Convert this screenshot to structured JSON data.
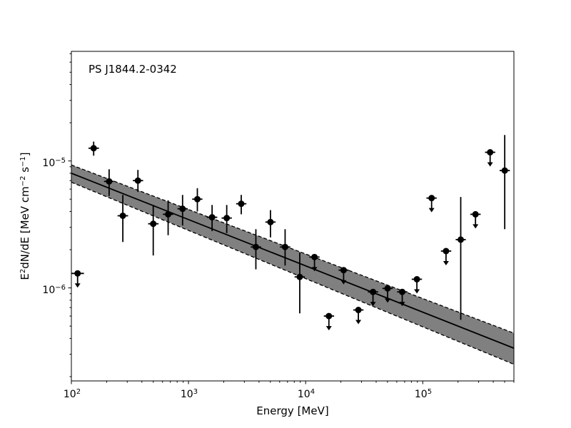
{
  "chart_data": {
    "type": "scatter",
    "title": "PS J1844.2-0342",
    "xlabel": "Energy [MeV]",
    "ylabel_main": "E",
    "ylabel_sup1": "2",
    "ylabel_mid": "dN/dE [MeV cm",
    "ylabel_sup2": "−2",
    "ylabel_mid2": " s",
    "ylabel_sup3": "−1",
    "ylabel_end": "]",
    "xscale": "log",
    "yscale": "log",
    "xlim": [
      100,
      600000
    ],
    "ylim": [
      1.85e-07,
      7.3e-05
    ],
    "x_ticks": [
      {
        "value": 100,
        "base": "10",
        "exp": "2"
      },
      {
        "value": 1000,
        "base": "10",
        "exp": "3"
      },
      {
        "value": 10000,
        "base": "10",
        "exp": "4"
      },
      {
        "value": 100000,
        "base": "10",
        "exp": "5"
      }
    ],
    "y_ticks": [
      {
        "value": 1e-06,
        "base": "10",
        "exp": "−6"
      },
      {
        "value": 1e-05,
        "base": "10",
        "exp": "−5"
      }
    ],
    "model": {
      "type": "power-law",
      "x_range": [
        100,
        600000
      ],
      "best": [
        8e-06,
        3.35e-07
      ],
      "upper": [
        9.3e-06,
        4.4e-07
      ],
      "lower": [
        6.8e-06,
        2.5e-07
      ],
      "band_color": "#808080",
      "line_color": "#000000"
    },
    "points": [
      {
        "x": 113,
        "y": 1.3e-06,
        "xlo": 100,
        "xhi": 128,
        "upper_limit": true
      },
      {
        "x": 155,
        "y": 1.26e-05,
        "xlo": 140,
        "xhi": 172,
        "ylo": 1.1e-05,
        "yhi": 1.42e-05,
        "upper_limit": false
      },
      {
        "x": 210,
        "y": 6.9e-06,
        "xlo": 190,
        "xhi": 230,
        "ylo": 5.3e-06,
        "yhi": 8.6e-06,
        "upper_limit": false
      },
      {
        "x": 275,
        "y": 3.7e-06,
        "xlo": 248,
        "xhi": 305,
        "ylo": 2.3e-06,
        "yhi": 5.4e-06,
        "upper_limit": false
      },
      {
        "x": 370,
        "y": 7e-06,
        "xlo": 335,
        "xhi": 410,
        "ylo": 5.7e-06,
        "yhi": 8.5e-06,
        "upper_limit": false
      },
      {
        "x": 500,
        "y": 3.2e-06,
        "xlo": 452,
        "xhi": 555,
        "ylo": 1.8e-06,
        "yhi": 4.5e-06,
        "upper_limit": false
      },
      {
        "x": 670,
        "y": 3.8e-06,
        "xlo": 605,
        "xhi": 740,
        "ylo": 2.6e-06,
        "yhi": 4.9e-06,
        "upper_limit": false
      },
      {
        "x": 890,
        "y": 4.2e-06,
        "xlo": 805,
        "xhi": 985,
        "ylo": 3.1e-06,
        "yhi": 5.4e-06,
        "upper_limit": false
      },
      {
        "x": 1190,
        "y": 5e-06,
        "xlo": 1075,
        "xhi": 1315,
        "ylo": 4e-06,
        "yhi": 6.1e-06,
        "upper_limit": false
      },
      {
        "x": 1590,
        "y": 3.6e-06,
        "xlo": 1435,
        "xhi": 1760,
        "ylo": 2.8e-06,
        "yhi": 4.5e-06,
        "upper_limit": false
      },
      {
        "x": 2120,
        "y": 3.55e-06,
        "xlo": 1915,
        "xhi": 2345,
        "ylo": 2.7e-06,
        "yhi": 4.5e-06,
        "upper_limit": false
      },
      {
        "x": 2820,
        "y": 4.6e-06,
        "xlo": 2550,
        "xhi": 3120,
        "ylo": 3.8e-06,
        "yhi": 5.4e-06,
        "upper_limit": false
      },
      {
        "x": 3760,
        "y": 2.1e-06,
        "xlo": 3400,
        "xhi": 4160,
        "ylo": 1.4e-06,
        "yhi": 2.9e-06,
        "upper_limit": false
      },
      {
        "x": 5010,
        "y": 3.3e-06,
        "xlo": 4530,
        "xhi": 5540,
        "ylo": 2.5e-06,
        "yhi": 4.1e-06,
        "upper_limit": false
      },
      {
        "x": 6680,
        "y": 2.1e-06,
        "xlo": 6040,
        "xhi": 7390,
        "ylo": 1.5e-06,
        "yhi": 2.9e-06,
        "upper_limit": false
      },
      {
        "x": 8910,
        "y": 1.22e-06,
        "xlo": 8050,
        "xhi": 9850,
        "ylo": 6.3e-07,
        "yhi": 1.9e-06,
        "upper_limit": false
      },
      {
        "x": 11900,
        "y": 1.75e-06,
        "xlo": 10750,
        "xhi": 13150,
        "upper_limit": true
      },
      {
        "x": 15800,
        "y": 6e-07,
        "xlo": 14300,
        "xhi": 17500,
        "upper_limit": true
      },
      {
        "x": 21100,
        "y": 1.38e-06,
        "xlo": 19100,
        "xhi": 23300,
        "upper_limit": true
      },
      {
        "x": 28200,
        "y": 6.7e-07,
        "xlo": 25500,
        "xhi": 31200,
        "upper_limit": true
      },
      {
        "x": 37600,
        "y": 9.3e-07,
        "xlo": 34000,
        "xhi": 41600,
        "upper_limit": true
      },
      {
        "x": 50100,
        "y": 9.9e-07,
        "xlo": 45300,
        "xhi": 55400,
        "upper_limit": true
      },
      {
        "x": 66800,
        "y": 9.3e-07,
        "xlo": 60400,
        "xhi": 73900,
        "upper_limit": true
      },
      {
        "x": 89100,
        "y": 1.17e-06,
        "xlo": 80500,
        "xhi": 98500,
        "upper_limit": true
      },
      {
        "x": 119000,
        "y": 5.1e-06,
        "xlo": 107500,
        "xhi": 131500,
        "upper_limit": true
      },
      {
        "x": 158000,
        "y": 1.95e-06,
        "xlo": 143000,
        "xhi": 175000,
        "upper_limit": true
      },
      {
        "x": 211000,
        "y": 2.4e-06,
        "xlo": 191000,
        "xhi": 233000,
        "ylo": 5.6e-07,
        "yhi": 5.2e-06,
        "upper_limit": false
      },
      {
        "x": 282000,
        "y": 3.8e-06,
        "xlo": 255000,
        "xhi": 312000,
        "upper_limit": true
      },
      {
        "x": 376000,
        "y": 1.17e-05,
        "xlo": 340000,
        "xhi": 416000,
        "upper_limit": true
      },
      {
        "x": 501000,
        "y": 8.4e-06,
        "xlo": 453000,
        "xhi": 554000,
        "ylo": 2.9e-06,
        "yhi": 1.6e-05,
        "upper_limit": false
      }
    ]
  }
}
